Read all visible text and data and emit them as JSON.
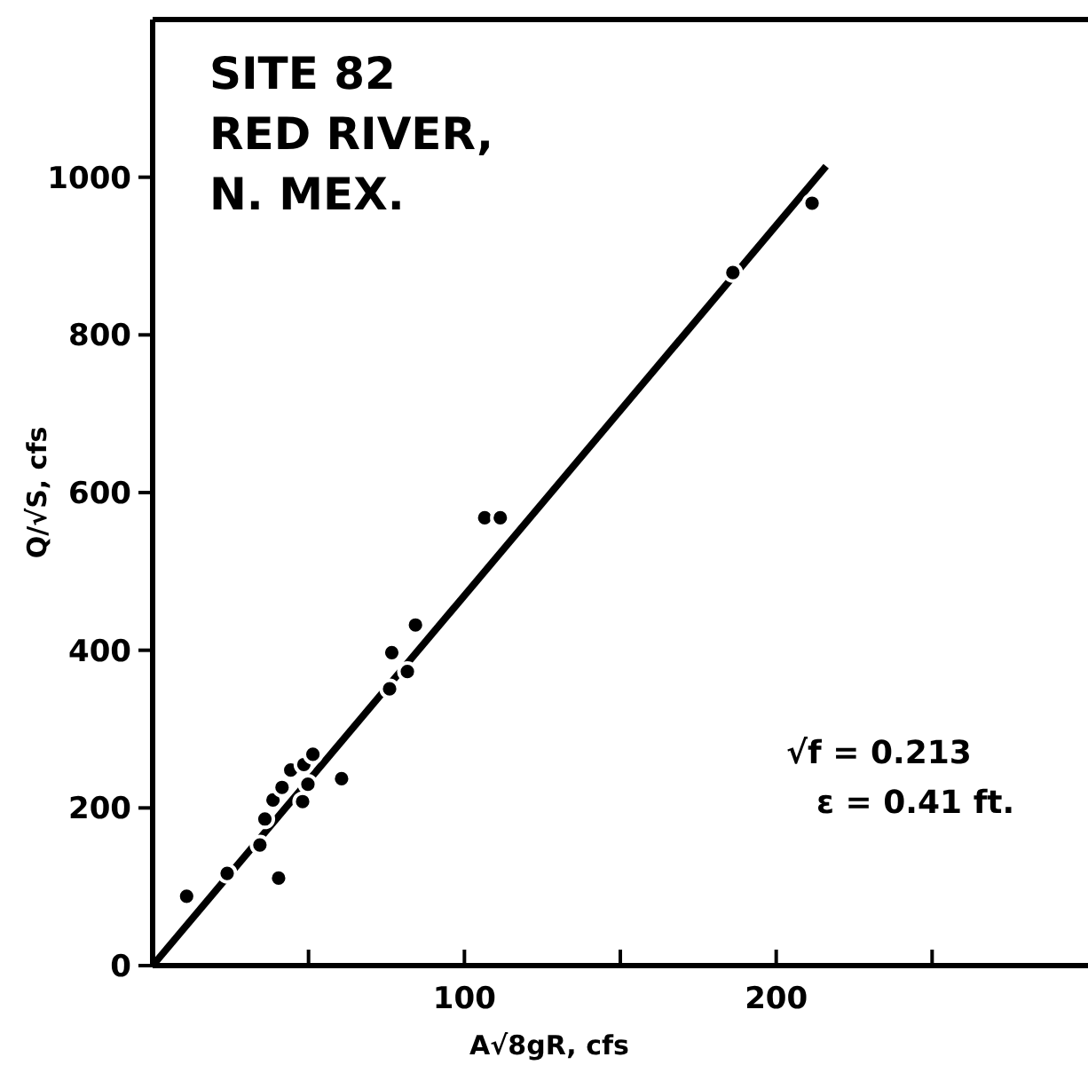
{
  "chart_data": {
    "type": "scatter",
    "xlabel": "A√8gR, cfs",
    "ylabel": "Q/√S, cfs",
    "annotations": [
      "SITE 82",
      "RED RIVER,",
      "N. MEX.",
      "√f = 0.213",
      "ε = 0.41 ft."
    ],
    "xlim": [
      0,
      300
    ],
    "ylim": [
      0,
      1200
    ],
    "xticks": [
      {
        "value": 50,
        "label": null
      },
      100,
      {
        "value": 150,
        "label": null
      },
      200,
      {
        "value": 250,
        "label": null
      }
    ],
    "yticks": [
      0,
      200,
      400,
      600,
      800,
      1000
    ],
    "grid": false,
    "series": [
      {
        "color": "#000000",
        "marker": "circle",
        "x": [
          10.9,
          23.9,
          34.4,
          40.4,
          36,
          38.6,
          41.5,
          44.3,
          48.1,
          48.5,
          49.8,
          51.4,
          60.6,
          76,
          76.7,
          81.7,
          84.3,
          106.5,
          111.5,
          186.1,
          211.5
        ],
        "values": [
          88,
          117,
          153,
          111,
          186,
          210,
          226,
          248,
          208,
          255,
          230,
          268,
          237,
          351,
          397,
          373,
          432,
          568,
          568,
          879,
          967
        ]
      },
      {
        "type": "line",
        "color": "#000000",
        "marker": "none",
        "x": [
          0,
          216
        ],
        "values": [
          0,
          1014
        ]
      }
    ]
  }
}
